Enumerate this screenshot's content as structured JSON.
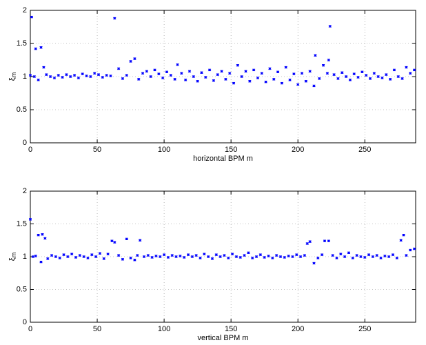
{
  "chart_data": [
    {
      "type": "errorbar",
      "xlabel": "horizontal BPM m",
      "ylabel": "ξ",
      "ylabel_subscript": "m",
      "color": "#0000ff",
      "grid": true,
      "error": 0.012,
      "xlim": [
        0,
        288
      ],
      "xticks": [
        0,
        50,
        100,
        150,
        200,
        250
      ],
      "ylim": [
        0,
        2
      ],
      "yticks": [
        0,
        0.5,
        1,
        1.5,
        2
      ],
      "x": [
        0,
        1,
        3,
        4,
        6,
        8,
        10,
        12,
        15,
        18,
        21,
        24,
        27,
        30,
        33,
        36,
        39,
        42,
        45,
        48,
        51,
        54,
        57,
        60,
        63,
        66,
        69,
        72,
        75,
        78,
        81,
        84,
        87,
        90,
        93,
        96,
        99,
        102,
        105,
        108,
        110,
        113,
        116,
        119,
        122,
        125,
        128,
        131,
        134,
        137,
        140,
        143,
        146,
        149,
        152,
        155,
        158,
        161,
        164,
        167,
        170,
        173,
        176,
        179,
        182,
        185,
        188,
        191,
        194,
        197,
        200,
        203,
        206,
        209,
        212,
        213,
        216,
        219,
        222,
        223,
        224,
        227,
        230,
        233,
        236,
        239,
        242,
        245,
        248,
        251,
        254,
        257,
        260,
        263,
        266,
        269,
        272,
        275,
        278,
        281,
        284,
        287
      ],
      "values": [
        1.02,
        1.9,
        1.0,
        1.42,
        0.95,
        1.44,
        1.14,
        1.03,
        1.0,
        0.98,
        1.02,
        0.99,
        1.03,
        1.0,
        1.02,
        0.98,
        1.04,
        1.01,
        1.0,
        1.05,
        1.03,
        0.99,
        1.02,
        1.01,
        1.88,
        1.12,
        0.97,
        1.02,
        1.23,
        1.27,
        0.96,
        1.05,
        1.08,
        1.0,
        1.1,
        1.04,
        0.98,
        1.07,
        1.02,
        0.96,
        1.18,
        1.05,
        0.95,
        1.08,
        1.0,
        0.93,
        1.06,
        0.99,
        1.1,
        0.94,
        1.03,
        1.08,
        0.96,
        1.05,
        0.9,
        1.17,
        1.0,
        1.08,
        0.93,
        1.1,
        0.98,
        1.05,
        0.92,
        1.12,
        0.96,
        1.07,
        0.9,
        1.14,
        0.95,
        1.04,
        0.88,
        1.05,
        0.93,
        1.08,
        0.86,
        1.32,
        0.97,
        1.17,
        1.05,
        1.25,
        1.76,
        1.03,
        0.97,
        1.06,
        1.0,
        0.95,
        1.04,
        0.99,
        1.07,
        1.02,
        0.97,
        1.05,
        1.0,
        0.98,
        1.03,
        0.96,
        1.1,
        1.0,
        0.97,
        1.14,
        1.05,
        1.1
      ]
    },
    {
      "type": "errorbar",
      "xlabel": "vertical BPM m",
      "ylabel": "ξ",
      "ylabel_subscript": "m",
      "color": "#0000ff",
      "grid": true,
      "error": 0.012,
      "xlim": [
        0,
        288
      ],
      "xticks": [
        0,
        50,
        100,
        150,
        200,
        250
      ],
      "ylim": [
        0,
        2
      ],
      "yticks": [
        0,
        0.5,
        1,
        1.5,
        2
      ],
      "x": [
        0,
        2,
        4,
        6,
        8,
        9,
        11,
        13,
        16,
        19,
        22,
        25,
        28,
        31,
        34,
        37,
        40,
        43,
        46,
        49,
        52,
        55,
        58,
        61,
        63,
        66,
        69,
        72,
        75,
        78,
        80,
        82,
        85,
        88,
        91,
        94,
        97,
        100,
        103,
        106,
        109,
        112,
        115,
        118,
        121,
        124,
        127,
        130,
        133,
        136,
        139,
        142,
        145,
        148,
        151,
        154,
        157,
        160,
        163,
        166,
        169,
        172,
        175,
        178,
        181,
        184,
        187,
        190,
        193,
        196,
        199,
        202,
        205,
        207,
        209,
        212,
        215,
        218,
        220,
        223,
        226,
        229,
        232,
        235,
        238,
        241,
        244,
        247,
        250,
        253,
        256,
        259,
        262,
        265,
        268,
        271,
        274,
        277,
        279,
        281,
        284,
        287
      ],
      "values": [
        1.57,
        1.0,
        1.01,
        1.33,
        0.92,
        1.34,
        1.28,
        0.97,
        1.02,
        1.0,
        0.98,
        1.03,
        1.0,
        1.04,
        0.99,
        1.02,
        1.0,
        0.98,
        1.03,
        1.0,
        1.05,
        0.97,
        1.04,
        1.24,
        1.22,
        1.02,
        0.96,
        1.27,
        0.98,
        0.95,
        1.02,
        1.25,
        1.0,
        1.02,
        0.99,
        1.01,
        1.0,
        1.03,
        0.99,
        1.02,
        1.0,
        1.01,
        0.99,
        1.03,
        1.0,
        1.02,
        0.98,
        1.04,
        1.0,
        0.97,
        1.03,
        1.0,
        1.02,
        0.98,
        1.04,
        1.0,
        0.99,
        1.02,
        1.06,
        0.98,
        1.0,
        1.03,
        0.99,
        1.01,
        0.98,
        1.02,
        1.0,
        0.99,
        1.01,
        1.0,
        1.03,
        1.0,
        1.02,
        1.2,
        1.23,
        0.9,
        0.98,
        1.03,
        1.24,
        1.24,
        1.02,
        0.98,
        1.04,
        1.0,
        1.06,
        0.98,
        1.02,
        1.0,
        0.99,
        1.03,
        1.0,
        1.02,
        0.98,
        1.01,
        1.0,
        1.03,
        0.98,
        1.25,
        1.33,
        1.02,
        1.1,
        1.12
      ]
    }
  ]
}
